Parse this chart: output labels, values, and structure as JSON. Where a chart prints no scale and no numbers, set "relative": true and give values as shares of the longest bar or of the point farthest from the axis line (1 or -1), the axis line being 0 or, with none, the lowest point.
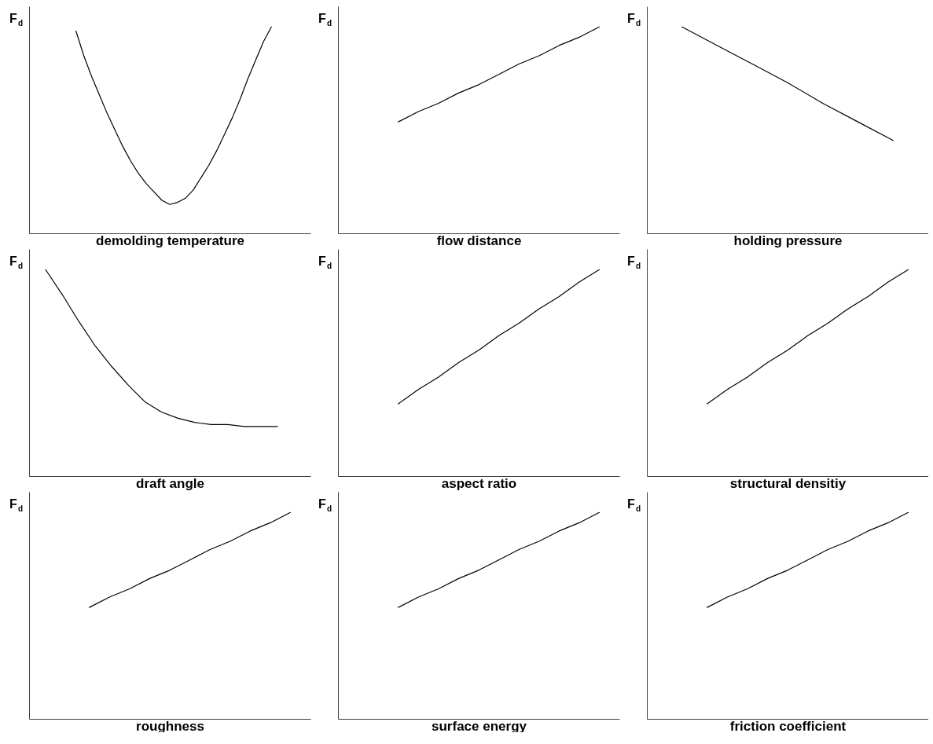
{
  "chart_data": [
    {
      "type": "line",
      "relative": true,
      "tick_labels": false,
      "ylabel": "F$_{d}$",
      "xlabel": "demolding temperature",
      "categories": [
        null,
        null,
        null,
        null,
        null,
        null,
        null,
        null,
        null,
        null,
        null,
        null,
        null,
        null,
        null,
        null,
        null,
        null,
        null,
        null,
        null,
        null,
        null,
        null,
        null,
        null,
        null,
        null,
        null,
        null,
        null,
        null,
        null,
        null,
        null,
        null,
        null
      ],
      "series": [
        {
          "color": "#000000",
          "values": [
            null,
            null,
            null,
            null,
            null,
            null,
            0.98,
            0.86,
            0.76,
            0.67,
            0.58,
            0.5,
            0.42,
            0.35,
            0.29,
            0.24,
            0.2,
            0.16,
            0.14,
            0.15,
            0.17,
            0.21,
            0.27,
            0.33,
            0.4,
            0.48,
            0.56,
            0.65,
            0.75,
            0.84,
            0.93,
            1,
            null,
            null,
            null,
            null,
            null
          ]
        }
      ]
    },
    {
      "type": "line",
      "relative": true,
      "tick_labels": false,
      "ylabel": "F$_{d}$",
      "xlabel": "flow distance",
      "categories": [
        null,
        null,
        null,
        null,
        null,
        null,
        null,
        null,
        null,
        null,
        null,
        null,
        null,
        null,
        null
      ],
      "series": [
        {
          "color": "#000000",
          "values": [
            null,
            null,
            null,
            0.54,
            0.59,
            0.63,
            0.68,
            0.72,
            0.77,
            0.82,
            0.86,
            0.91,
            0.95,
            1,
            null
          ]
        }
      ]
    },
    {
      "type": "line",
      "relative": true,
      "tick_labels": false,
      "ylabel": "F$_{d}$",
      "xlabel": "holding pressure",
      "categories": [
        null,
        null,
        null,
        null,
        null,
        null,
        null,
        null,
        null
      ],
      "series": [
        {
          "color": "#000000",
          "values": [
            null,
            1,
            0.91,
            0.82,
            0.73,
            0.63,
            0.54,
            0.45,
            null
          ]
        }
      ]
    },
    {
      "type": "line",
      "relative": true,
      "tick_labels": false,
      "ylabel": "F$_{d}$",
      "xlabel": "draft angle",
      "categories": [
        null,
        null,
        null,
        null,
        null,
        null,
        null,
        null,
        null,
        null,
        null,
        null,
        null,
        null,
        null,
        null,
        null,
        null
      ],
      "series": [
        {
          "color": "#000000",
          "values": [
            null,
            1,
            0.88,
            0.75,
            0.63,
            0.53,
            0.44,
            0.36,
            0.31,
            0.28,
            0.26,
            0.25,
            0.25,
            0.24,
            0.24,
            0.24,
            null,
            null
          ]
        }
      ]
    },
    {
      "type": "line",
      "relative": true,
      "tick_labels": false,
      "ylabel": "F$_{d}$",
      "xlabel": "aspect ratio",
      "categories": [
        null,
        null,
        null,
        null,
        null,
        null,
        null,
        null,
        null,
        null,
        null,
        null,
        null,
        null,
        null
      ],
      "series": [
        {
          "color": "#000000",
          "values": [
            null,
            null,
            null,
            0.35,
            0.42,
            0.48,
            0.55,
            0.61,
            0.68,
            0.74,
            0.81,
            0.87,
            0.94,
            1,
            null
          ]
        }
      ]
    },
    {
      "type": "line",
      "relative": true,
      "tick_labels": false,
      "ylabel": "F$_{d}$",
      "xlabel": "structural densitiy",
      "categories": [
        null,
        null,
        null,
        null,
        null,
        null,
        null,
        null,
        null,
        null,
        null,
        null,
        null,
        null,
        null
      ],
      "series": [
        {
          "color": "#000000",
          "values": [
            null,
            null,
            null,
            0.35,
            0.42,
            0.48,
            0.55,
            0.61,
            0.68,
            0.74,
            0.81,
            0.87,
            0.94,
            1,
            null
          ]
        }
      ]
    },
    {
      "type": "line",
      "relative": true,
      "tick_labels": false,
      "ylabel": "F$_{d}$",
      "xlabel": "roughness",
      "categories": [
        null,
        null,
        null,
        null,
        null,
        null,
        null,
        null,
        null,
        null,
        null,
        null,
        null,
        null,
        null
      ],
      "series": [
        {
          "color": "#000000",
          "values": [
            null,
            null,
            null,
            0.54,
            0.59,
            0.63,
            0.68,
            0.72,
            0.77,
            0.82,
            0.86,
            0.91,
            0.95,
            1,
            null
          ]
        }
      ]
    },
    {
      "type": "line",
      "relative": true,
      "tick_labels": false,
      "ylabel": "F$_{d}$",
      "xlabel": "surface energy",
      "categories": [
        null,
        null,
        null,
        null,
        null,
        null,
        null,
        null,
        null,
        null,
        null,
        null,
        null,
        null,
        null
      ],
      "series": [
        {
          "color": "#000000",
          "values": [
            null,
            null,
            null,
            0.54,
            0.59,
            0.63,
            0.68,
            0.72,
            0.77,
            0.82,
            0.86,
            0.91,
            0.95,
            1,
            null
          ]
        }
      ]
    },
    {
      "type": "line",
      "relative": true,
      "tick_labels": false,
      "ylabel": "F$_{d}$",
      "xlabel": "friction coefficient",
      "categories": [
        null,
        null,
        null,
        null,
        null,
        null,
        null,
        null,
        null,
        null,
        null,
        null,
        null,
        null,
        null
      ],
      "series": [
        {
          "color": "#000000",
          "values": [
            null,
            null,
            null,
            0.54,
            0.59,
            0.63,
            0.68,
            0.72,
            0.77,
            0.82,
            0.86,
            0.91,
            0.95,
            1,
            null
          ]
        }
      ]
    }
  ]
}
